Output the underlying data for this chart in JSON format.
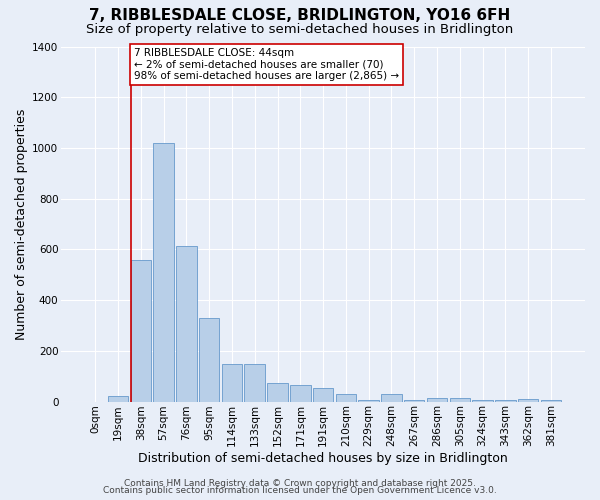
{
  "title": "7, RIBBLESDALE CLOSE, BRIDLINGTON, YO16 6FH",
  "subtitle": "Size of property relative to semi-detached houses in Bridlington",
  "xlabel": "Distribution of semi-detached houses by size in Bridlington",
  "ylabel": "Number of semi-detached properties",
  "bar_labels": [
    "0sqm",
    "19sqm",
    "38sqm",
    "57sqm",
    "76sqm",
    "95sqm",
    "114sqm",
    "133sqm",
    "152sqm",
    "171sqm",
    "191sqm",
    "210sqm",
    "229sqm",
    "248sqm",
    "267sqm",
    "286sqm",
    "305sqm",
    "324sqm",
    "343sqm",
    "362sqm",
    "381sqm"
  ],
  "bar_values": [
    0,
    20,
    560,
    1020,
    615,
    330,
    148,
    148,
    75,
    65,
    55,
    28,
    5,
    28,
    5,
    14,
    14,
    5,
    5,
    10,
    5
  ],
  "bar_color": "#b8cfe8",
  "bar_edge_color": "#6699cc",
  "bg_color": "#e8eef8",
  "grid_color": "#ffffff",
  "vline_color": "#cc0000",
  "annotation_text": "7 RIBBLESDALE CLOSE: 44sqm\n← 2% of semi-detached houses are smaller (70)\n98% of semi-detached houses are larger (2,865) →",
  "annotation_box_color": "#ffffff",
  "annotation_box_edge": "#cc0000",
  "ylim": [
    0,
    1400
  ],
  "yticks": [
    0,
    200,
    400,
    600,
    800,
    1000,
    1200,
    1400
  ],
  "footer_line1": "Contains HM Land Registry data © Crown copyright and database right 2025.",
  "footer_line2": "Contains public sector information licensed under the Open Government Licence v3.0.",
  "title_fontsize": 11,
  "subtitle_fontsize": 9.5,
  "axis_label_fontsize": 9,
  "tick_fontsize": 7.5,
  "annotation_fontsize": 7.5,
  "footer_fontsize": 6.5
}
